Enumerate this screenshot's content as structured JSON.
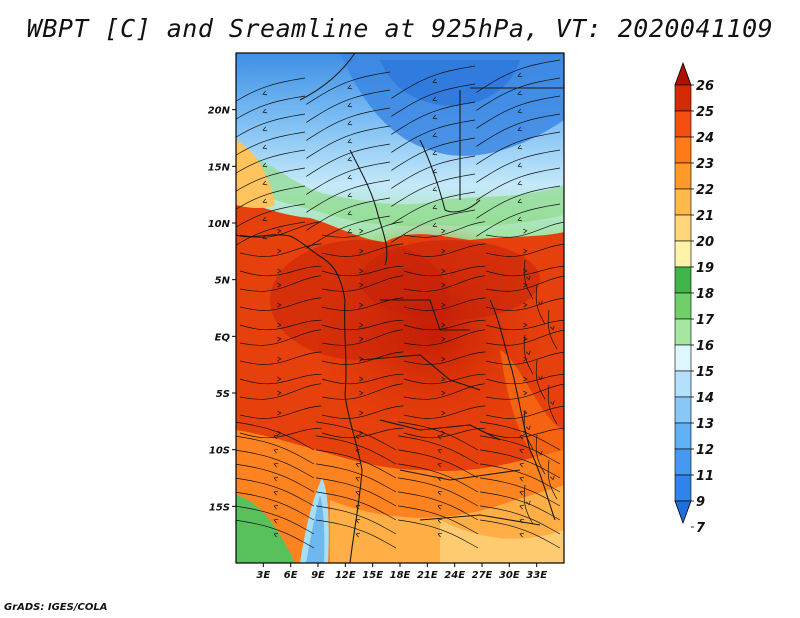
{
  "title": "WBPT [C] and Sreamline at 925hPa, VT: 2020041109",
  "credit": "GrADS: IGES/COLA",
  "map": {
    "lon_range": [
      0,
      36
    ],
    "lat_range": [
      -20,
      25
    ],
    "lon_ticks": [
      {
        "value": 3,
        "label": "3E"
      },
      {
        "value": 6,
        "label": "6E"
      },
      {
        "value": 9,
        "label": "9E"
      },
      {
        "value": 12,
        "label": "12E"
      },
      {
        "value": 15,
        "label": "15E"
      },
      {
        "value": 18,
        "label": "18E"
      },
      {
        "value": 21,
        "label": "21E"
      },
      {
        "value": 24,
        "label": "24E"
      },
      {
        "value": 27,
        "label": "27E"
      },
      {
        "value": 30,
        "label": "30E"
      },
      {
        "value": 33,
        "label": "33E"
      }
    ],
    "lat_ticks": [
      {
        "value": 20,
        "label": "20N"
      },
      {
        "value": 15,
        "label": "15N"
      },
      {
        "value": 10,
        "label": "10N"
      },
      {
        "value": 5,
        "label": "5N"
      },
      {
        "value": 0,
        "label": "EQ"
      },
      {
        "value": -5,
        "label": "5S"
      },
      {
        "value": -10,
        "label": "10S"
      },
      {
        "value": -15,
        "label": "15S"
      }
    ]
  },
  "colorbar": {
    "levels": [
      "7",
      "9",
      "11",
      "12",
      "13",
      "14",
      "15",
      "16",
      "17",
      "18",
      "19",
      "20",
      "21",
      "22",
      "23",
      "24",
      "25",
      "26"
    ],
    "colors": [
      "#1f6ee0",
      "#2f83ea",
      "#4599f0",
      "#5fb0f5",
      "#86c9f8",
      "#b4e0fb",
      "#e0f6ff",
      "#a6e6a0",
      "#6fd06a",
      "#3fb54a",
      "#fff3a8",
      "#ffd77a",
      "#ffb84c",
      "#ff9a2a",
      "#ff7a18",
      "#f24e10",
      "#d42a06",
      "#b21000"
    ]
  }
}
